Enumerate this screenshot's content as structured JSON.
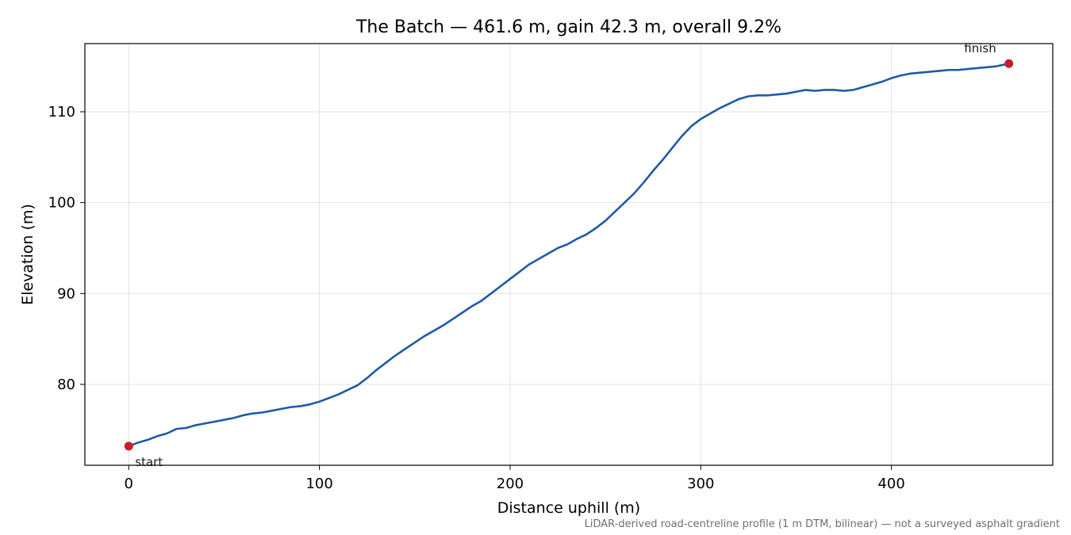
{
  "chart_data": {
    "type": "line",
    "title": "The Batch — 461.6 m, gain 42.3 m, overall 9.2%",
    "xlabel": "Distance uphill (m)",
    "ylabel": "Elevation (m)",
    "xlim": [
      -23,
      484.6
    ],
    "ylim": [
      71.1,
      117.5
    ],
    "xticks": [
      0,
      100,
      200,
      300,
      400
    ],
    "yticks": [
      80,
      90,
      100,
      110
    ],
    "grid": true,
    "series": [
      {
        "color": "#1f5aa8",
        "x": [
          0,
          5,
          10,
          15,
          20,
          25,
          30,
          35,
          40,
          45,
          50,
          55,
          60,
          65,
          70,
          75,
          80,
          85,
          90,
          95,
          100,
          105,
          110,
          115,
          120,
          125,
          130,
          135,
          140,
          145,
          150,
          155,
          160,
          165,
          170,
          175,
          180,
          185,
          190,
          195,
          200,
          205,
          210,
          215,
          220,
          225,
          230,
          235,
          240,
          245,
          250,
          255,
          260,
          265,
          270,
          275,
          280,
          285,
          290,
          295,
          300,
          305,
          310,
          315,
          320,
          325,
          330,
          335,
          340,
          345,
          350,
          355,
          360,
          365,
          370,
          375,
          380,
          385,
          390,
          395,
          400,
          405,
          410,
          415,
          420,
          425,
          430,
          435,
          440,
          445,
          450,
          455,
          461.6
        ],
        "y": [
          73.2,
          73.6,
          73.9,
          74.3,
          74.6,
          75.1,
          75.2,
          75.5,
          75.7,
          75.9,
          76.1,
          76.3,
          76.6,
          76.8,
          76.9,
          77.1,
          77.3,
          77.5,
          77.6,
          77.8,
          78.1,
          78.5,
          78.9,
          79.4,
          79.9,
          80.7,
          81.6,
          82.4,
          83.2,
          83.9,
          84.6,
          85.3,
          85.9,
          86.5,
          87.2,
          87.9,
          88.6,
          89.2,
          90.0,
          90.8,
          91.6,
          92.4,
          93.2,
          93.8,
          94.4,
          95.0,
          95.4,
          96.0,
          96.5,
          97.2,
          98.0,
          99.0,
          100.0,
          101.0,
          102.2,
          103.5,
          104.7,
          106.0,
          107.3,
          108.4,
          109.2,
          109.8,
          110.4,
          110.9,
          111.4,
          111.7,
          111.8,
          111.8,
          111.9,
          112.0,
          112.2,
          112.4,
          112.3,
          112.4,
          112.4,
          112.3,
          112.4,
          112.7,
          113.0,
          113.3,
          113.7,
          114.0,
          114.2,
          114.3,
          114.4,
          114.5,
          114.6,
          114.6,
          114.7,
          114.8,
          114.9,
          115.0,
          115.3
        ]
      }
    ],
    "points": [
      {
        "x": 0,
        "y": 73.2,
        "label": "start",
        "color": "#c41e2a"
      },
      {
        "x": 461.6,
        "y": 115.3,
        "label": "finish",
        "color": "#c41e2a"
      }
    ],
    "footnote": "LiDAR-derived road-centreline profile (1 m DTM, bilinear) — not a surveyed asphalt gradient"
  }
}
